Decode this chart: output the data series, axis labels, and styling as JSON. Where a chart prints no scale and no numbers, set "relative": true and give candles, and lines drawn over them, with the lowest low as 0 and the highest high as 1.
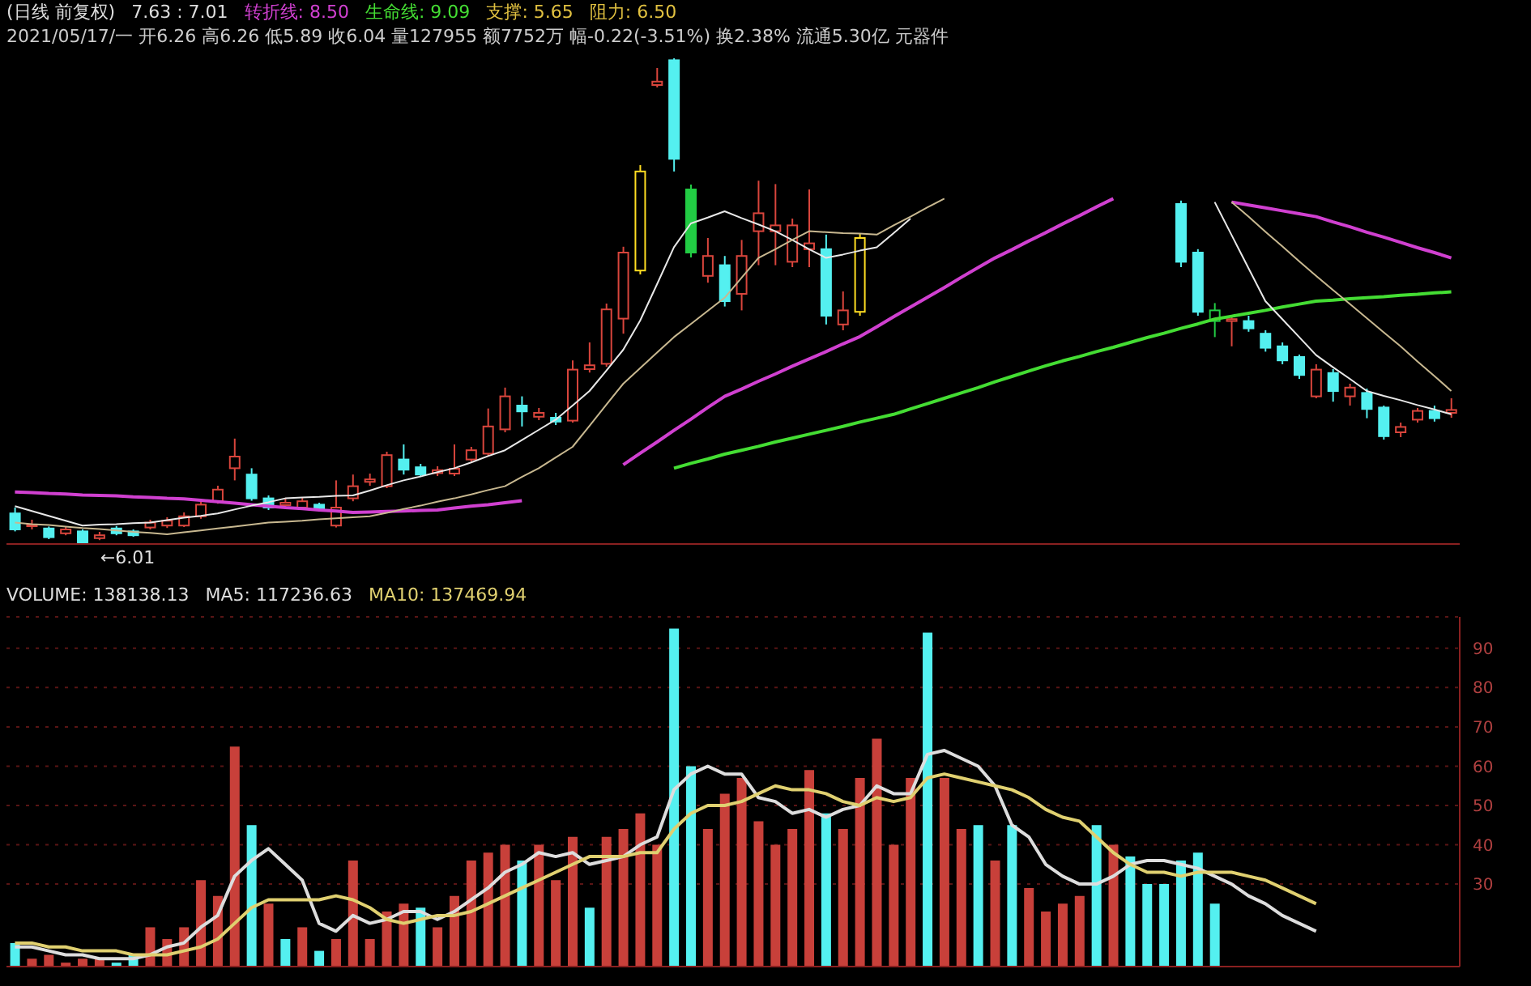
{
  "chart_data": [
    {
      "type": "candlestick",
      "relative": true,
      "title": "(日线 前复权)",
      "subtitle": "2021/05/17/一 开6.26 高6.26 低5.89 收6.04 量127955 额7752万 幅-0.22(-3.51%) 换2.38% 流通5.30亿 元器件",
      "annotations": [
        "7.63 : 7.01",
        "支撑: 5.65",
        "阻力: 6.50",
        "←6.01"
      ],
      "legend": "top left",
      "tick_labels": false,
      "marker": "none",
      "categories": [
        null,
        null,
        null,
        null,
        null,
        null,
        null,
        null,
        null,
        null,
        null,
        null,
        null,
        null,
        null,
        null,
        null,
        null,
        null,
        null,
        null,
        null,
        null,
        null,
        null,
        null,
        null,
        null,
        null,
        null,
        null,
        null,
        null,
        null,
        null,
        null,
        null,
        null,
        null,
        null,
        null,
        null,
        null,
        null,
        null,
        null,
        null,
        null,
        null,
        null,
        null,
        null,
        null,
        null,
        null,
        null,
        null,
        null,
        null,
        null,
        null,
        null,
        null,
        null,
        null,
        null,
        null,
        null,
        null,
        null,
        null,
        null,
        null,
        null,
        null,
        null,
        null,
        null,
        null,
        null,
        null,
        null,
        null,
        null,
        null,
        null
      ],
      "ohlc": [
        [
          0.063,
          0.075,
          0.026,
          0.03
        ],
        [
          0.037,
          0.05,
          0.03,
          0.04
        ],
        [
          0.032,
          0.036,
          0.01,
          0.014
        ],
        [
          0.022,
          0.035,
          0.018,
          0.03
        ],
        [
          0.026,
          0.03,
          0,
          0.002
        ],
        [
          0.012,
          0.025,
          0.008,
          0.018
        ],
        [
          0.032,
          0.037,
          0.018,
          0.022
        ],
        [
          0.026,
          0.03,
          0.015,
          0.018
        ],
        [
          0.034,
          0.05,
          0.03,
          0.044
        ],
        [
          0.038,
          0.055,
          0.033,
          0.048
        ],
        [
          0.038,
          0.065,
          0.035,
          0.057
        ],
        [
          0.057,
          0.093,
          0.052,
          0.081
        ],
        [
          0.088,
          0.12,
          0.083,
          0.112
        ],
        [
          0.156,
          0.217,
          0.131,
          0.18
        ],
        [
          0.143,
          0.156,
          0.089,
          0.094
        ],
        [
          0.094,
          0.1,
          0.07,
          0.075
        ],
        [
          0.08,
          0.095,
          0.075,
          0.085
        ],
        [
          0.075,
          0.095,
          0.07,
          0.088
        ],
        [
          0.081,
          0.085,
          0.068,
          0.071
        ],
        [
          0.038,
          0.131,
          0.034,
          0.075
        ],
        [
          0.094,
          0.143,
          0.088,
          0.119
        ],
        [
          0.128,
          0.145,
          0.12,
          0.133
        ],
        [
          0.119,
          0.19,
          0.115,
          0.183
        ],
        [
          0.174,
          0.205,
          0.143,
          0.153
        ],
        [
          0.158,
          0.165,
          0.138,
          0.143
        ],
        [
          0.146,
          0.16,
          0.14,
          0.152
        ],
        [
          0.145,
          0.205,
          0.14,
          0.155
        ],
        [
          0.174,
          0.2,
          0.17,
          0.193
        ],
        [
          0.186,
          0.279,
          0.18,
          0.242
        ],
        [
          0.236,
          0.322,
          0.23,
          0.304
        ],
        [
          0.285,
          0.304,
          0.242,
          0.273
        ],
        [
          0.262,
          0.28,
          0.255,
          0.27
        ],
        [
          0.26,
          0.27,
          0.245,
          0.252
        ],
        [
          0.254,
          0.378,
          0.25,
          0.359
        ],
        [
          0.36,
          0.415,
          0.353,
          0.368
        ],
        [
          0.371,
          0.495,
          0.365,
          0.483
        ],
        [
          0.464,
          0.612,
          0.433,
          0.6
        ],
        [
          0.563,
          0.78,
          0.555,
          0.767
        ],
        [
          0.945,
          0.98,
          0.94,
          0.952
        ],
        [
          0.996,
          1,
          0.767,
          0.793
        ],
        [
          0.73,
          0.74,
          0.59,
          0.6
        ],
        [
          0.552,
          0.63,
          0.538,
          0.593
        ],
        [
          0.574,
          0.593,
          0.489,
          0.5
        ],
        [
          0.515,
          0.626,
          0.481,
          0.593
        ],
        [
          0.644,
          0.748,
          0.574,
          0.681
        ],
        [
          0.644,
          0.741,
          0.574,
          0.656
        ],
        [
          0.581,
          0.67,
          0.57,
          0.656
        ],
        [
          0.607,
          0.73,
          0.57,
          0.619
        ],
        [
          0.607,
          0.637,
          0.452,
          0.47
        ],
        [
          0.452,
          0.52,
          0.44,
          0.481
        ],
        [
          0.478,
          0.64,
          0.47,
          0.63
        ],
        null,
        null,
        null,
        null,
        null,
        null,
        null,
        null,
        null,
        null,
        null,
        null,
        null,
        null,
        null,
        null,
        null,
        null,
        [
          0.7,
          0.707,
          0.57,
          0.581
        ],
        [
          0.6,
          0.607,
          0.47,
          0.478
        ],
        [
          0.459,
          0.496,
          0.426,
          0.481
        ],
        [
          0.459,
          0.467,
          0.407,
          0.463
        ],
        [
          0.459,
          0.47,
          0.437,
          0.444
        ],
        [
          0.433,
          0.44,
          0.396,
          0.404
        ],
        [
          0.407,
          0.415,
          0.37,
          0.378
        ],
        [
          0.385,
          0.39,
          0.34,
          0.348
        ],
        [
          0.304,
          0.37,
          0.3,
          0.359
        ],
        [
          0.352,
          0.36,
          0.293,
          0.315
        ],
        [
          0.304,
          0.33,
          0.285,
          0.322
        ],
        [
          0.311,
          0.32,
          0.259,
          0.278
        ],
        [
          0.281,
          0.285,
          0.215,
          0.222
        ],
        [
          0.23,
          0.25,
          0.22,
          0.241
        ],
        [
          0.256,
          0.28,
          0.25,
          0.274
        ],
        [
          0.274,
          0.285,
          0.252,
          0.259
        ],
        [
          0.27,
          0.3,
          0.26,
          0.276
        ]
      ],
      "colors": [
        "#54f0f0",
        "#d9453c",
        "#54f0f0",
        "#d9453c",
        "#54f0f0",
        "#d9453c",
        "#54f0f0",
        "#54f0f0",
        "#d9453c",
        "#d9453c",
        "#d9453c",
        "#d9453c",
        "#d9453c",
        "#d9453c",
        "#54f0f0",
        "#54f0f0",
        "#d9453c",
        "#d9453c",
        "#54f0f0",
        "#d9453c",
        "#d9453c",
        "#d9453c",
        "#d9453c",
        "#54f0f0",
        "#54f0f0",
        "#d9453c",
        "#d9453c",
        "#d9453c",
        "#d9453c",
        "#d9453c",
        "#54f0f0",
        "#d9453c",
        "#54f0f0",
        "#d9453c",
        "#d9453c",
        "#d9453c",
        "#d9453c",
        "#ffdd22",
        "#d9453c",
        "#54f0f0",
        "#22cc44",
        "#d9453c",
        "#54f0f0",
        "#d9453c",
        "#d9453c",
        "#d9453c",
        "#d9453c",
        "#d9453c",
        "#54f0f0",
        "#d9453c",
        "#ffdd22",
        "#d9453c",
        "#d9453c",
        "#d9453c",
        "#d9453c",
        "#d9453c",
        "#d9453c",
        "#d9453c",
        "#d9453c",
        "#d9453c",
        "#d9453c",
        "#d9453c",
        "#d9453c",
        "#d9453c",
        "#d9453c",
        "#d9453c",
        "#d9453c",
        "#d9453c",
        "#d9453c",
        "#54f0f0",
        "#54f0f0",
        "#22cc44",
        "#d9453c",
        "#54f0f0",
        "#54f0f0",
        "#54f0f0",
        "#54f0f0",
        "#d9453c",
        "#54f0f0",
        "#d9453c",
        "#54f0f0",
        "#54f0f0",
        "#d9453c",
        "#d9453c",
        "#54f0f0",
        "#d9453c"
      ],
      "series": [
        {
          "name": "转折线: 8.50",
          "type": "line",
          "color": "#d040d0",
          "values": [
            0.107,
            0.106,
            0.104,
            0.103,
            0.101,
            0.1,
            0.099,
            0.097,
            0.096,
            0.094,
            0.093,
            0.09,
            0.087,
            0.084,
            0.081,
            0.078,
            0.075,
            0.073,
            0.07,
            0.068,
            0.065,
            0.066,
            0.067,
            0.068,
            0.069,
            0.07,
            0.074,
            0.078,
            0.081,
            0.085,
            0.089,
            null,
            null,
            null,
            null,
            null,
            0.163,
            0.187,
            0.21,
            0.234,
            0.257,
            0.281,
            0.304,
            0.319,
            0.335,
            0.35,
            0.366,
            0.381,
            0.396,
            0.412,
            0.427,
            0.447,
            0.468,
            0.488,
            0.508,
            0.528,
            0.549,
            0.569,
            0.589,
            0.606,
            0.624,
            0.641,
            0.659,
            0.676,
            0.694,
            0.711,
            null,
            null,
            null,
            null,
            null,
            null,
            0.704,
            0.698,
            0.692,
            0.686,
            0.68,
            0.674,
            0.663,
            0.653,
            0.642,
            0.632,
            0.621,
            0.61,
            0.6,
            0.589
          ]
        },
        {
          "name": "生命线: 9.09",
          "type": "line",
          "color": "#44dd33",
          "values": [
            null,
            null,
            null,
            null,
            null,
            null,
            null,
            null,
            null,
            null,
            null,
            null,
            null,
            null,
            null,
            null,
            null,
            null,
            null,
            null,
            null,
            null,
            null,
            null,
            null,
            null,
            null,
            null,
            null,
            null,
            null,
            null,
            null,
            null,
            null,
            null,
            null,
            null,
            null,
            0.156,
            0.166,
            0.175,
            0.185,
            0.193,
            0.201,
            0.21,
            0.218,
            0.226,
            0.234,
            0.242,
            0.251,
            0.259,
            0.267,
            0.278,
            0.289,
            0.3,
            0.311,
            0.322,
            0.334,
            0.345,
            0.356,
            0.367,
            0.377,
            0.386,
            0.396,
            0.405,
            0.415,
            0.425,
            0.434,
            0.444,
            0.453,
            0.463,
            0.469,
            0.475,
            0.481,
            0.488,
            0.494,
            0.5,
            0.502,
            0.505,
            0.507,
            0.509,
            0.512,
            0.514,
            0.517,
            0.519
          ]
        },
        {
          "type": "line",
          "color": "#e8e8e8",
          "values": [
            0.078,
            0.068,
            0.058,
            0.048,
            0.038,
            0.04,
            0.041,
            0.043,
            0.044,
            0.049,
            0.054,
            0.058,
            0.063,
            0.071,
            0.079,
            0.086,
            0.094,
            0.096,
            0.097,
            0.099,
            0.1,
            0.11,
            0.121,
            0.131,
            0.139,
            0.148,
            0.156,
            0.168,
            0.181,
            0.193,
            0.214,
            0.235,
            0.256,
            0.285,
            0.315,
            0.357,
            0.4,
            0.46,
            0.535,
            0.611,
            0.66,
            0.672,
            0.685,
            0.671,
            0.658,
            0.644,
            0.626,
            0.607,
            0.589,
            0.596,
            0.604,
            0.611,
            0.64,
            0.67,
            null,
            null,
            null,
            null,
            null,
            null,
            null,
            null,
            null,
            null,
            null,
            null,
            null,
            null,
            null,
            null,
            null,
            0.704,
            0.636,
            0.568,
            0.5,
            0.463,
            0.426,
            0.389,
            0.364,
            0.34,
            0.315,
            0.305,
            0.296,
            0.286,
            0.277,
            0.267
          ]
        },
        {
          "type": "line",
          "color": "#c8b890",
          "values": [
            0.044,
            0.041,
            0.039,
            0.036,
            0.033,
            0.031,
            0.028,
            0.025,
            0.023,
            0.02,
            0.024,
            0.028,
            0.032,
            0.036,
            0.04,
            0.044,
            0.046,
            0.048,
            0.051,
            0.053,
            0.055,
            0.057,
            0.064,
            0.072,
            0.079,
            0.087,
            0.094,
            0.102,
            0.111,
            0.119,
            0.138,
            0.156,
            0.178,
            0.2,
            0.243,
            0.287,
            0.33,
            0.362,
            0.394,
            0.426,
            0.453,
            0.48,
            0.507,
            0.548,
            0.589,
            0.607,
            0.626,
            0.644,
            0.642,
            0.64,
            0.639,
            0.637,
            0.656,
            0.674,
            0.693,
            0.711,
            null,
            null,
            null,
            null,
            null,
            null,
            null,
            null,
            null,
            null,
            null,
            null,
            null,
            null,
            null,
            null,
            0.704,
            0.674,
            0.643,
            0.613,
            0.582,
            0.552,
            0.523,
            0.494,
            0.465,
            0.436,
            0.407,
            0.376,
            0.346,
            0.315
          ]
        }
      ]
    },
    {
      "type": "bar",
      "title": "VOLUME: 138138.13",
      "legend": "top left",
      "tick_labels": "y",
      "grid": "y",
      "marker": "none",
      "ylim": [
        9,
        98
      ],
      "yticks": [
        30,
        40,
        50,
        60,
        70,
        80,
        90
      ],
      "categories": [
        null,
        null,
        null,
        null,
        null,
        null,
        null,
        null,
        null,
        null,
        null,
        null,
        null,
        null,
        null,
        null,
        null,
        null,
        null,
        null,
        null,
        null,
        null,
        null,
        null,
        null,
        null,
        null,
        null,
        null,
        null,
        null,
        null,
        null,
        null,
        null,
        null,
        null,
        null,
        null,
        null,
        null,
        null,
        null,
        null,
        null,
        null,
        null,
        null,
        null,
        null,
        null,
        null,
        null,
        null,
        null,
        null,
        null,
        null,
        null,
        null,
        null,
        null,
        null,
        null,
        null,
        null,
        null,
        null,
        null,
        null,
        null,
        null,
        null,
        null,
        null,
        null,
        null,
        null,
        null,
        null,
        null,
        null,
        null,
        null,
        null
      ],
      "series": [
        {
          "type": "bar",
          "values": [
            15,
            11,
            12,
            10,
            11,
            11,
            10,
            12,
            19,
            16,
            19,
            31,
            27,
            65,
            45,
            25,
            16,
            19,
            13,
            16,
            36,
            16,
            23,
            25,
            24,
            19,
            27,
            36,
            38,
            40,
            36,
            40,
            31,
            42,
            24,
            42,
            44,
            48,
            40,
            95,
            60,
            44,
            53,
            57,
            46,
            40,
            44,
            59,
            48,
            44,
            57,
            67,
            40,
            57,
            94,
            57,
            44,
            45,
            36,
            45,
            29,
            23,
            25,
            27,
            45,
            40,
            37,
            30,
            30,
            36,
            38,
            25,
            null,
            null,
            null,
            null,
            null,
            null,
            null,
            null,
            null,
            null,
            null,
            null,
            null,
            null
          ],
          "colors": [
            "#54f0f0",
            "#c8403a",
            "#c8403a",
            "#c8403a",
            "#c8403a",
            "#c8403a",
            "#54f0f0",
            "#54f0f0",
            "#c8403a",
            "#c8403a",
            "#c8403a",
            "#c8403a",
            "#c8403a",
            "#c8403a",
            "#54f0f0",
            "#c8403a",
            "#54f0f0",
            "#c8403a",
            "#54f0f0",
            "#c8403a",
            "#c8403a",
            "#c8403a",
            "#c8403a",
            "#c8403a",
            "#54f0f0",
            "#c8403a",
            "#c8403a",
            "#c8403a",
            "#c8403a",
            "#c8403a",
            "#54f0f0",
            "#c8403a",
            "#c8403a",
            "#c8403a",
            "#54f0f0",
            "#c8403a",
            "#c8403a",
            "#c8403a",
            "#c8403a",
            "#54f0f0",
            "#54f0f0",
            "#c8403a",
            "#c8403a",
            "#c8403a",
            "#c8403a",
            "#c8403a",
            "#c8403a",
            "#c8403a",
            "#54f0f0",
            "#c8403a",
            "#c8403a",
            "#c8403a",
            "#c8403a",
            "#c8403a",
            "#54f0f0",
            "#c8403a",
            "#c8403a",
            "#54f0f0",
            "#c8403a",
            "#54f0f0",
            "#c8403a",
            "#c8403a",
            "#c8403a",
            "#c8403a",
            "#54f0f0",
            "#c8403a",
            "#54f0f0",
            "#54f0f0",
            "#54f0f0",
            "#54f0f0",
            "#54f0f0",
            "#54f0f0",
            "#c8403a",
            "#c8403a",
            "#c8403a",
            "#c8403a",
            "#c8403a",
            "#c8403a",
            "#c8403a",
            "#c8403a",
            "#c8403a",
            "#c8403a",
            "#c8403a",
            "#c8403a",
            "#c8403a",
            "#c8403a"
          ]
        },
        {
          "name": "MA5: 117236.63",
          "type": "line",
          "color": "#dddddd",
          "values": [
            14,
            14,
            13,
            12,
            12,
            11,
            11,
            11,
            12,
            14,
            15,
            19,
            22,
            32,
            36,
            39,
            35,
            31,
            20,
            18,
            22,
            20,
            21,
            23,
            23,
            21,
            23,
            26,
            29,
            33,
            35,
            38,
            37,
            38,
            35,
            36,
            37,
            40,
            42,
            54,
            58,
            60,
            58,
            58,
            52,
            51,
            48,
            49,
            47,
            49,
            50,
            55,
            53,
            53,
            63,
            64,
            62,
            60,
            55,
            45,
            42,
            35,
            32,
            30,
            30,
            32,
            35,
            36,
            36,
            35,
            34,
            32,
            30,
            27,
            25,
            22,
            20,
            18,
            null,
            null,
            null,
            null,
            null,
            null,
            null,
            null
          ]
        },
        {
          "name": "MA10: 137469.94",
          "type": "line",
          "color": "#e0d070",
          "values": [
            15,
            15,
            14,
            14,
            13,
            13,
            13,
            12,
            12,
            12,
            13,
            14,
            16,
            20,
            24,
            26,
            26,
            26,
            26,
            27,
            26,
            24,
            21,
            20,
            21,
            22,
            22,
            23,
            25,
            27,
            29,
            31,
            33,
            35,
            37,
            37,
            37,
            38,
            38,
            44,
            48,
            50,
            50,
            51,
            53,
            55,
            54,
            54,
            53,
            51,
            50,
            52,
            51,
            52,
            57,
            58,
            57,
            56,
            55,
            54,
            52,
            49,
            47,
            46,
            42,
            38,
            35,
            33,
            33,
            32,
            33,
            33,
            33,
            32,
            31,
            29,
            27,
            25,
            null,
            null,
            null,
            null,
            null,
            null,
            null,
            null
          ]
        }
      ]
    }
  ]
}
